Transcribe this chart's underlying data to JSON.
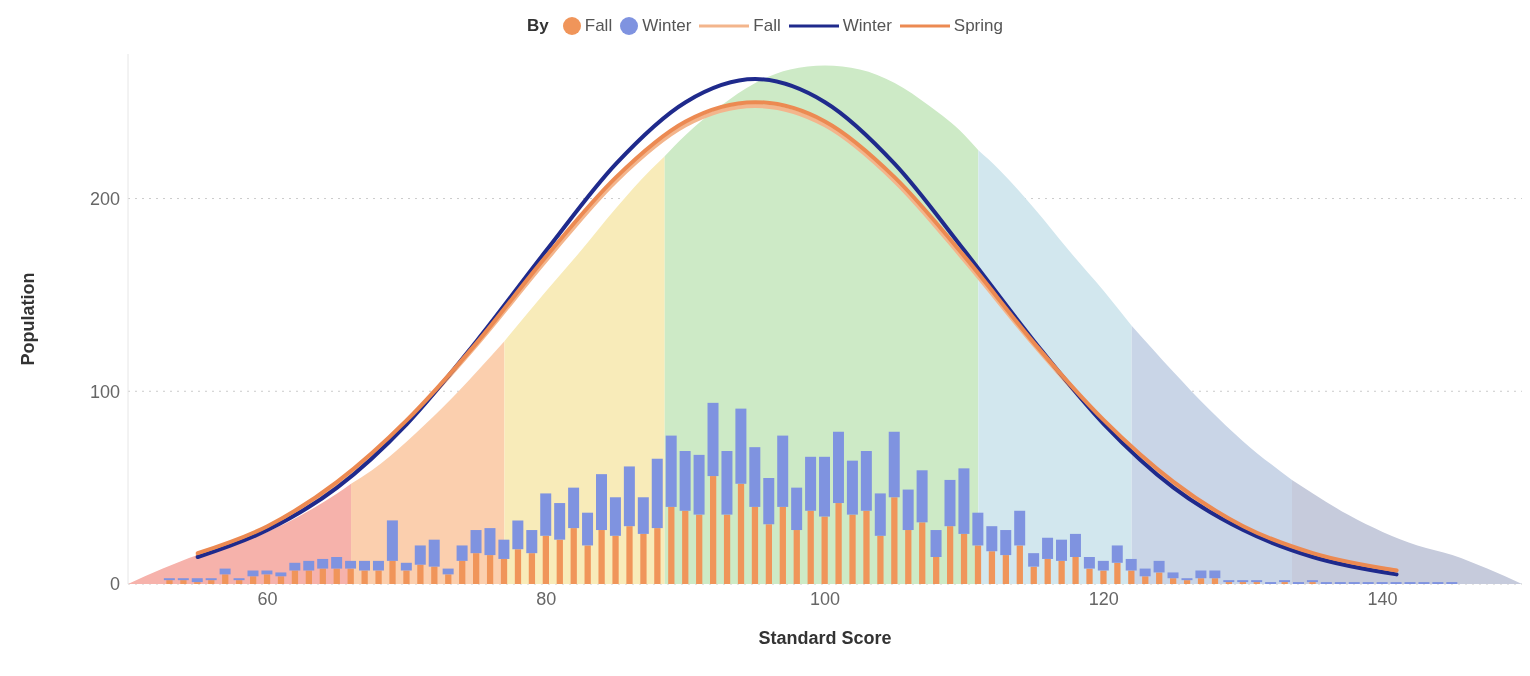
{
  "chart_data": {
    "type": "bar",
    "xlabel": "Standard Score",
    "ylabel": "Population",
    "legend_title": "By",
    "legend": "top",
    "grid": "y",
    "xlim": [
      50,
      150
    ],
    "xticks": [
      60,
      80,
      100,
      120,
      140
    ],
    "ylim": [
      0,
      275
    ],
    "yticks": [
      0,
      100,
      200
    ],
    "x": [
      53,
      54,
      55,
      56,
      57,
      58,
      59,
      60,
      61,
      62,
      63,
      64,
      65,
      66,
      67,
      68,
      69,
      70,
      71,
      72,
      73,
      74,
      75,
      76,
      77,
      78,
      79,
      80,
      81,
      82,
      83,
      84,
      85,
      86,
      87,
      88,
      89,
      90,
      91,
      92,
      93,
      94,
      95,
      96,
      97,
      98,
      99,
      100,
      101,
      102,
      103,
      104,
      105,
      106,
      107,
      108,
      109,
      110,
      111,
      112,
      113,
      114,
      115,
      116,
      117,
      118,
      119,
      120,
      121,
      122,
      123,
      124,
      125,
      126,
      127,
      128,
      129,
      130,
      131,
      132,
      133,
      134,
      135,
      136,
      137,
      138,
      139,
      140,
      141,
      142,
      143,
      144,
      145
    ],
    "series": [
      {
        "type": "area",
        "color": "#f6b2ab",
        "x": [
          50,
          52.5,
          55,
          57.5,
          60,
          62.5,
          65,
          66
        ],
        "values": [
          0,
          8,
          15,
          20,
          27,
          36,
          47,
          52
        ]
      },
      {
        "type": "area",
        "color": "#fbcfae",
        "x": [
          66,
          67.5,
          70,
          72.5,
          75,
          77
        ],
        "values": [
          52,
          59,
          74,
          91,
          110,
          126
        ]
      },
      {
        "type": "area",
        "color": "#f8ebb9",
        "x": [
          77,
          80,
          82.5,
          85,
          87.5,
          88.5
        ],
        "values": [
          126,
          152,
          173,
          195,
          215,
          222
        ]
      },
      {
        "type": "area",
        "color": "#cdeac6",
        "x": [
          88.5,
          90,
          92.5,
          95,
          97.5,
          100,
          102.5,
          105,
          107.5,
          110,
          111
        ],
        "values": [
          222,
          233,
          248,
          260,
          267,
          269,
          267,
          260,
          248,
          233,
          225
        ]
      },
      {
        "type": "area",
        "color": "#d2e7ee",
        "x": [
          111,
          112.5,
          115,
          117.5,
          120,
          122
        ],
        "values": [
          225,
          215,
          195,
          173,
          152,
          134
        ]
      },
      {
        "type": "area",
        "color": "#c9d5e7",
        "x": [
          122,
          125,
          127.5,
          130,
          133.5
        ],
        "values": [
          134,
          110,
          91,
          74,
          54
        ]
      },
      {
        "type": "area",
        "color": "#c6cbdc",
        "x": [
          133.5,
          135,
          137.5,
          140,
          142.5,
          145,
          147.5,
          150
        ],
        "values": [
          54,
          47,
          36,
          27,
          20,
          15,
          8,
          0
        ]
      },
      {
        "name": "Fall",
        "color": "#f0955a",
        "values": [
          2,
          2,
          1,
          2,
          5,
          2,
          4,
          5,
          4,
          7,
          7,
          8,
          8,
          8,
          7,
          7,
          12,
          7,
          10,
          9,
          5,
          12,
          16,
          15,
          13,
          18,
          16,
          25,
          23,
          29,
          20,
          28,
          25,
          30,
          26,
          29,
          40,
          38,
          36,
          56,
          36,
          52,
          40,
          31,
          40,
          28,
          38,
          35,
          42,
          36,
          38,
          25,
          45,
          28,
          32,
          14,
          30,
          26,
          20,
          17,
          15,
          20,
          9,
          13,
          12,
          14,
          8,
          7,
          11,
          7,
          4,
          6,
          3,
          2,
          3,
          3,
          1,
          1,
          1,
          0,
          1,
          0,
          1,
          0,
          0,
          0,
          0,
          0,
          0,
          0,
          0,
          0,
          0
        ]
      },
      {
        "name": "Winter",
        "color": "#7f93e0",
        "values": [
          1,
          1,
          2,
          1,
          3,
          1,
          3,
          2,
          2,
          4,
          5,
          5,
          6,
          4,
          5,
          5,
          21,
          4,
          10,
          14,
          3,
          8,
          12,
          14,
          10,
          15,
          12,
          22,
          19,
          21,
          17,
          29,
          20,
          31,
          19,
          36,
          37,
          31,
          31,
          38,
          33,
          39,
          31,
          24,
          37,
          22,
          28,
          31,
          37,
          28,
          31,
          22,
          34,
          21,
          27,
          14,
          24,
          34,
          17,
          13,
          13,
          18,
          7,
          11,
          11,
          12,
          6,
          5,
          9,
          6,
          4,
          6,
          3,
          1,
          4,
          4,
          1,
          1,
          1,
          1,
          1,
          1,
          1,
          1,
          1,
          1,
          1,
          1,
          1,
          1,
          1,
          1,
          1
        ],
        "base": [
          2,
          2,
          1,
          2,
          5,
          2,
          4,
          5,
          4,
          7,
          7,
          8,
          8,
          8,
          7,
          7,
          12,
          7,
          10,
          9,
          5,
          12,
          16,
          15,
          13,
          18,
          16,
          25,
          23,
          29,
          20,
          28,
          25,
          30,
          26,
          29,
          40,
          38,
          36,
          56,
          36,
          52,
          40,
          31,
          40,
          28,
          38,
          35,
          42,
          36,
          38,
          25,
          45,
          28,
          32,
          14,
          30,
          26,
          20,
          17,
          15,
          20,
          9,
          13,
          12,
          14,
          8,
          7,
          11,
          7,
          4,
          6,
          3,
          2,
          3,
          3,
          1,
          1,
          1,
          0,
          1,
          0,
          1,
          0,
          0,
          0,
          0,
          0,
          0,
          0,
          0,
          0,
          0
        ]
      },
      {
        "type": "line",
        "name": "Fall",
        "color": "#f3b58c",
        "x": [
          55,
          60,
          65,
          70,
          75,
          80,
          85,
          90,
          95,
          100,
          105,
          110,
          115,
          120,
          125,
          130,
          135,
          141
        ],
        "values": [
          15,
          29,
          52,
          84,
          124,
          168,
          209,
          238,
          248,
          238,
          209,
          168,
          124,
          84,
          52,
          29,
          15,
          7
        ]
      },
      {
        "type": "line",
        "name": "Winter",
        "color": "#1f2a8c",
        "x": [
          55,
          60,
          65,
          70,
          75,
          80,
          85,
          90,
          95,
          100,
          105,
          110,
          115,
          120,
          125,
          130,
          135,
          141
        ],
        "values": [
          14,
          28,
          50,
          83,
          126,
          173,
          218,
          250,
          262,
          250,
          218,
          173,
          126,
          83,
          50,
          28,
          14,
          5
        ]
      },
      {
        "type": "line",
        "name": "Spring",
        "color": "#ec8a52",
        "x": [
          55,
          60,
          65,
          70,
          75,
          80,
          85,
          90,
          95,
          100,
          105,
          110,
          115,
          120,
          125,
          130,
          135,
          141
        ],
        "values": [
          16,
          30,
          53,
          85,
          125,
          170,
          211,
          240,
          250,
          240,
          211,
          170,
          125,
          85,
          53,
          30,
          16,
          7
        ]
      }
    ]
  }
}
